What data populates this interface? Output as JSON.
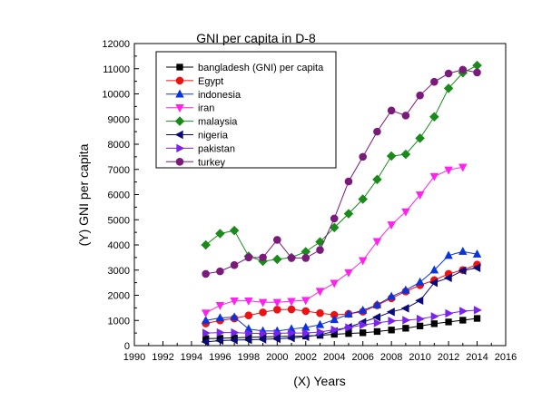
{
  "chart_data": {
    "type": "line",
    "title": "GNI per capita in D-8",
    "xlabel": "(X) Years",
    "ylabel": "(Y) GNI per capita",
    "xlim": [
      1990,
      2016
    ],
    "ylim": [
      0,
      12000
    ],
    "x_ticks": [
      1990,
      1992,
      1994,
      1996,
      1998,
      2000,
      2002,
      2004,
      2006,
      2008,
      2010,
      2012,
      2014,
      2016
    ],
    "y_ticks": [
      0,
      1000,
      2000,
      3000,
      4000,
      5000,
      6000,
      7000,
      8000,
      9000,
      10000,
      11000,
      12000
    ],
    "grid": false,
    "legend_position": "top-left",
    "series": [
      {
        "name": "bangladesh (GNI) per capita",
        "color": "#000000",
        "marker": "square",
        "x": [
          1995,
          1996,
          1997,
          1998,
          1999,
          2000,
          2001,
          2002,
          2003,
          2004,
          2005,
          2006,
          2007,
          2008,
          2009,
          2010,
          2011,
          2012,
          2013,
          2014
        ],
        "y": [
          280,
          290,
          310,
          330,
          340,
          360,
          370,
          380,
          410,
          450,
          480,
          510,
          560,
          620,
          690,
          780,
          870,
          940,
          1010,
          1080
        ]
      },
      {
        "name": "Egypt",
        "color": "#ee1111",
        "marker": "circle",
        "x": [
          1995,
          1996,
          1997,
          1998,
          1999,
          2000,
          2001,
          2002,
          2003,
          2004,
          2005,
          2006,
          2007,
          2008,
          2009,
          2010,
          2011,
          2012,
          2013,
          2014
        ],
        "y": [
          880,
          1000,
          1080,
          1200,
          1320,
          1430,
          1440,
          1370,
          1290,
          1220,
          1260,
          1350,
          1600,
          1880,
          2150,
          2400,
          2600,
          2850,
          3000,
          3220
        ]
      },
      {
        "name": "indonesia",
        "color": "#0a33dd",
        "marker": "triangle-up",
        "x": [
          1995,
          1996,
          1997,
          1998,
          1999,
          2000,
          2001,
          2002,
          2003,
          2004,
          2005,
          2006,
          2007,
          2008,
          2009,
          2010,
          2011,
          2012,
          2013,
          2014
        ],
        "y": [
          1000,
          1100,
          1130,
          660,
          580,
          580,
          660,
          720,
          830,
          1030,
          1250,
          1400,
          1620,
          1950,
          2200,
          2520,
          3000,
          3580,
          3740,
          3630
        ]
      },
      {
        "name": "iran",
        "color": "#ff22ee",
        "marker": "triangle-down",
        "x": [
          1995,
          1996,
          1997,
          1998,
          1999,
          2000,
          2001,
          2002,
          2003,
          2004,
          2005,
          2006,
          2007,
          2008,
          2009,
          2010,
          2011,
          2012,
          2013
        ],
        "y": [
          1300,
          1600,
          1780,
          1780,
          1720,
          1720,
          1760,
          1800,
          2160,
          2480,
          2900,
          3380,
          4140,
          4800,
          5320,
          5990,
          6720,
          6980,
          7090
        ]
      },
      {
        "name": "malaysia",
        "color": "#1a8a1a",
        "marker": "diamond",
        "x": [
          1995,
          1996,
          1997,
          1998,
          1999,
          2000,
          2001,
          2002,
          2003,
          2004,
          2005,
          2006,
          2007,
          2008,
          2009,
          2010,
          2011,
          2012,
          2013,
          2014
        ],
        "y": [
          4000,
          4450,
          4570,
          3550,
          3350,
          3430,
          3500,
          3730,
          4120,
          4690,
          5240,
          5820,
          6600,
          7530,
          7600,
          8240,
          9090,
          10220,
          10840,
          11130
        ]
      },
      {
        "name": "nigeria",
        "color": "#0a0a7a",
        "marker": "triangle-left",
        "x": [
          1995,
          1996,
          1997,
          1998,
          1999,
          2000,
          2001,
          2002,
          2003,
          2004,
          2005,
          2006,
          2007,
          2008,
          2009,
          2010,
          2011,
          2012,
          2013,
          2014
        ],
        "y": [
          150,
          200,
          220,
          230,
          250,
          270,
          300,
          350,
          430,
          570,
          730,
          930,
          1130,
          1340,
          1480,
          1790,
          2500,
          2690,
          2980,
          3090
        ]
      },
      {
        "name": "pakistan",
        "color": "#7a22ee",
        "marker": "triangle-right",
        "x": [
          1995,
          1996,
          1997,
          1998,
          1999,
          2000,
          2001,
          2002,
          2003,
          2004,
          2005,
          2006,
          2007,
          2008,
          2009,
          2010,
          2011,
          2012,
          2013,
          2014
        ],
        "y": [
          500,
          520,
          520,
          490,
          480,
          490,
          500,
          500,
          540,
          630,
          720,
          820,
          900,
          980,
          1010,
          1060,
          1160,
          1280,
          1370,
          1410
        ]
      },
      {
        "name": "turkey",
        "color": "#7a1a7a",
        "marker": "circle",
        "x": [
          1995,
          1996,
          1997,
          1998,
          1999,
          2000,
          2001,
          2002,
          2003,
          2004,
          2005,
          2006,
          2007,
          2008,
          2009,
          2010,
          2011,
          2012,
          2013,
          2014
        ],
        "y": [
          2850,
          2950,
          3200,
          3500,
          3500,
          4200,
          3480,
          3480,
          3800,
          5050,
          6520,
          7500,
          8500,
          9340,
          9140,
          9940,
          10480,
          10810,
          10960,
          10850
        ]
      }
    ]
  }
}
